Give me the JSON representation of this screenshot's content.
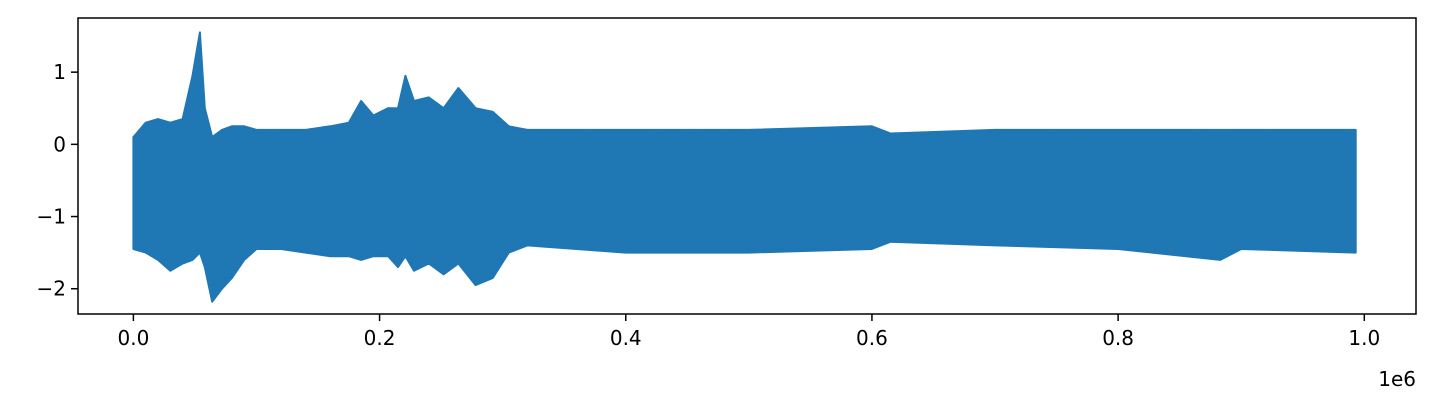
{
  "chart_data": {
    "type": "line",
    "title": "",
    "xlabel": "",
    "ylabel": "",
    "x_offset_label": "1e6",
    "xlim": [
      -45000,
      1042000
    ],
    "ylim": [
      -2.35,
      1.75
    ],
    "x_range": [
      0,
      993000
    ],
    "x_ticks": [
      {
        "value": 0,
        "label": "0.0"
      },
      {
        "value": 200000,
        "label": "0.2"
      },
      {
        "value": 400000,
        "label": "0.4"
      },
      {
        "value": 600000,
        "label": "0.6"
      },
      {
        "value": 800000,
        "label": "0.8"
      },
      {
        "value": 1000000,
        "label": "1.0"
      }
    ],
    "y_ticks": [
      {
        "value": 1,
        "label": "1"
      },
      {
        "value": 0,
        "label": "0"
      },
      {
        "value": -1,
        "label": "−1"
      },
      {
        "value": -2,
        "label": "−2"
      }
    ],
    "grid": false,
    "series": [
      {
        "color": "#1f77b4",
        "envelope": [
          {
            "x": 0,
            "max": 0.1,
            "min": -1.45
          },
          {
            "x": 10000,
            "max": 0.3,
            "min": -1.5
          },
          {
            "x": 20000,
            "max": 0.35,
            "min": -1.6
          },
          {
            "x": 30000,
            "max": 0.3,
            "min": -1.75
          },
          {
            "x": 40000,
            "max": 0.35,
            "min": -1.65
          },
          {
            "x": 48000,
            "max": 0.95,
            "min": -1.6
          },
          {
            "x": 54000,
            "max": 1.55,
            "min": -1.5
          },
          {
            "x": 58000,
            "max": 0.5,
            "min": -1.7
          },
          {
            "x": 64000,
            "max": 0.1,
            "min": -2.18
          },
          {
            "x": 72000,
            "max": 0.2,
            "min": -2.0
          },
          {
            "x": 80000,
            "max": 0.25,
            "min": -1.85
          },
          {
            "x": 90000,
            "max": 0.25,
            "min": -1.6
          },
          {
            "x": 100000,
            "max": 0.2,
            "min": -1.45
          },
          {
            "x": 120000,
            "max": 0.2,
            "min": -1.45
          },
          {
            "x": 140000,
            "max": 0.2,
            "min": -1.5
          },
          {
            "x": 160000,
            "max": 0.25,
            "min": -1.55
          },
          {
            "x": 175000,
            "max": 0.3,
            "min": -1.55
          },
          {
            "x": 185000,
            "max": 0.6,
            "min": -1.6
          },
          {
            "x": 195000,
            "max": 0.4,
            "min": -1.55
          },
          {
            "x": 207000,
            "max": 0.5,
            "min": -1.55
          },
          {
            "x": 215000,
            "max": 0.5,
            "min": -1.7
          },
          {
            "x": 221000,
            "max": 0.95,
            "min": -1.55
          },
          {
            "x": 228000,
            "max": 0.6,
            "min": -1.75
          },
          {
            "x": 240000,
            "max": 0.65,
            "min": -1.65
          },
          {
            "x": 252000,
            "max": 0.5,
            "min": -1.8
          },
          {
            "x": 264000,
            "max": 0.78,
            "min": -1.65
          },
          {
            "x": 278000,
            "max": 0.5,
            "min": -1.95
          },
          {
            "x": 292000,
            "max": 0.45,
            "min": -1.85
          },
          {
            "x": 305000,
            "max": 0.25,
            "min": -1.5
          },
          {
            "x": 320000,
            "max": 0.2,
            "min": -1.4
          },
          {
            "x": 400000,
            "max": 0.2,
            "min": -1.5
          },
          {
            "x": 500000,
            "max": 0.2,
            "min": -1.5
          },
          {
            "x": 600000,
            "max": 0.25,
            "min": -1.45
          },
          {
            "x": 615000,
            "max": 0.15,
            "min": -1.35
          },
          {
            "x": 700000,
            "max": 0.2,
            "min": -1.4
          },
          {
            "x": 800000,
            "max": 0.2,
            "min": -1.45
          },
          {
            "x": 883000,
            "max": 0.2,
            "min": -1.6
          },
          {
            "x": 900000,
            "max": 0.2,
            "min": -1.45
          },
          {
            "x": 993000,
            "max": 0.2,
            "min": -1.5
          }
        ]
      }
    ]
  }
}
